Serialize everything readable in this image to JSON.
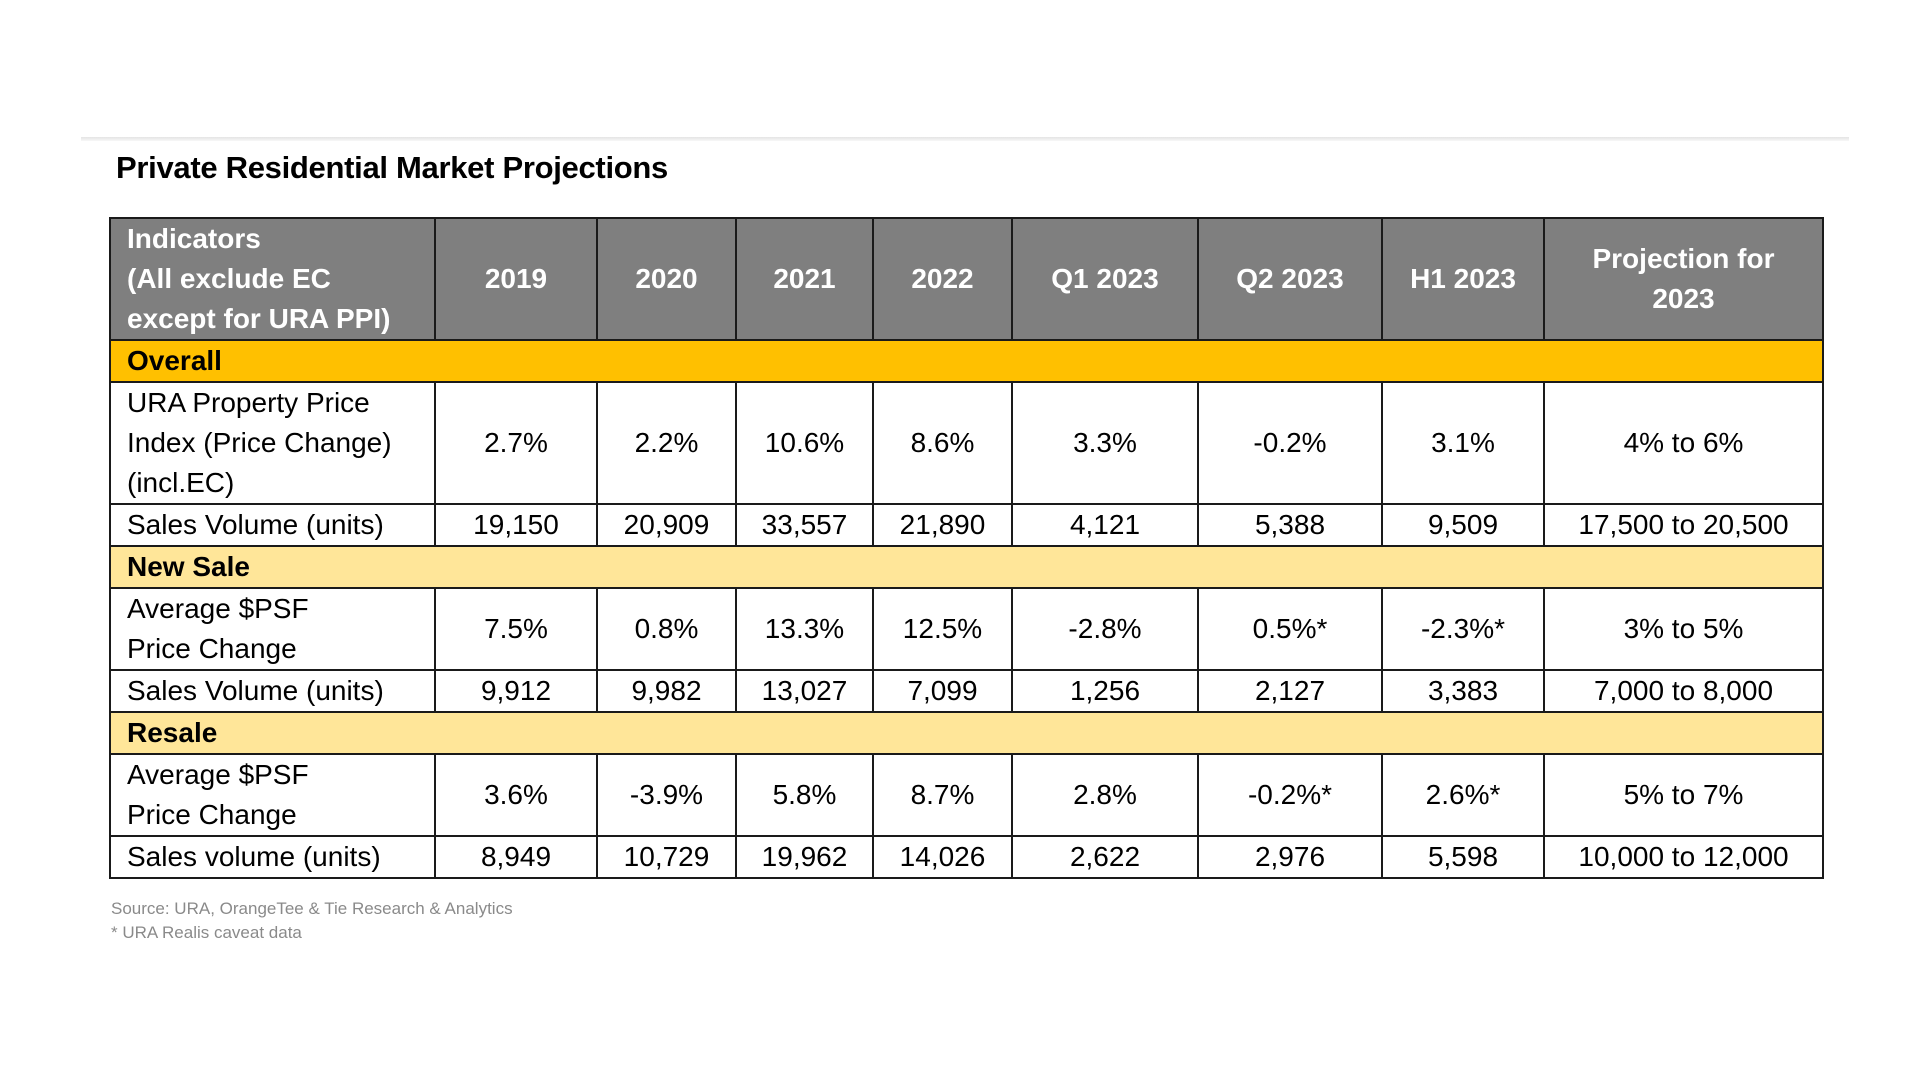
{
  "title": "Private Residential Market Projections",
  "header": {
    "indicator_lines": [
      "Indicators",
      "(All exclude EC",
      "except for URA PPI)"
    ],
    "columns": [
      "2019",
      "2020",
      "2021",
      "2022",
      "Q1 2023",
      "Q2 2023",
      "H1 2023"
    ],
    "projection_lines": [
      "Projection for",
      "2023"
    ]
  },
  "sections": [
    {
      "name": "Overall",
      "rows": [
        {
          "label_lines": [
            "URA Property Price",
            "Index (Price Change)",
            "(incl.EC)"
          ],
          "values": [
            "2.7%",
            "2.2%",
            "10.6%",
            "8.6%",
            "3.3%",
            "-0.2%",
            "3.1%",
            "4% to 6%"
          ]
        },
        {
          "label_lines": [
            "Sales Volume (units)"
          ],
          "values": [
            "19,150",
            "20,909",
            "33,557",
            "21,890",
            "4,121",
            "5,388",
            "9,509",
            "17,500 to 20,500"
          ]
        }
      ]
    },
    {
      "name": "New Sale",
      "rows": [
        {
          "label_lines": [
            "Average $PSF",
            "Price Change"
          ],
          "values": [
            "7.5%",
            "0.8%",
            "13.3%",
            "12.5%",
            "-2.8%",
            "0.5%*",
            "-2.3%*",
            "3% to 5%"
          ]
        },
        {
          "label_lines": [
            "Sales Volume (units)"
          ],
          "values": [
            "9,912",
            "9,982",
            "13,027",
            "7,099",
            "1,256",
            "2,127",
            "3,383",
            "7,000 to 8,000"
          ]
        }
      ]
    },
    {
      "name": "Resale",
      "rows": [
        {
          "label_lines": [
            "Average $PSF",
            "Price Change"
          ],
          "values": [
            "3.6%",
            "-3.9%",
            "5.8%",
            "8.7%",
            "2.8%",
            "-0.2%*",
            "2.6%*",
            "5% to 7%"
          ]
        },
        {
          "label_lines": [
            "Sales volume (units)"
          ],
          "values": [
            "8,949",
            "10,729",
            "19,962",
            "14,026",
            "2,622",
            "2,976",
            "5,598",
            "10,000 to 12,000"
          ]
        }
      ]
    }
  ],
  "footnotes": {
    "source": "Source: URA, OrangeTee & Tie Research & Analytics",
    "caveat": "* URA Realis caveat data"
  },
  "colors": {
    "header_bg": "#7f7f7f",
    "overall_band": "#ffc000",
    "section_band": "#ffe699"
  }
}
